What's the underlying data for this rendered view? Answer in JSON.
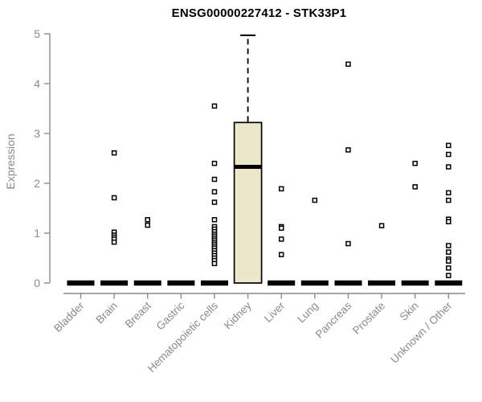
{
  "chart": {
    "title": "ENSG00000227412 - STK33P1",
    "ylabel": "Expression"
  },
  "chart_data": {
    "type": "boxplot",
    "title": "ENSG00000227412 - STK33P1",
    "xlabel": "",
    "ylabel": "Expression",
    "ylim": [
      0,
      5
    ],
    "yticks": [
      0,
      1,
      2,
      3,
      4,
      5
    ],
    "grid": false,
    "legend": false,
    "categories": [
      "Bladder",
      "Brain",
      "Breast",
      "Gastric",
      "Hematopoietic cells",
      "Kidney",
      "Liver",
      "Lung",
      "Pancreas",
      "Prostate",
      "Skin",
      "Unknown / Other"
    ],
    "groups": [
      {
        "name": "Bladder",
        "box": {
          "q1": 0,
          "median": 0,
          "q3": 0,
          "whisker_low": 0,
          "whisker_high": 0
        },
        "points": []
      },
      {
        "name": "Brain",
        "box": {
          "q1": 0,
          "median": 0,
          "q3": 0,
          "whisker_low": 0,
          "whisker_high": 0
        },
        "points": [
          2.61,
          1.71,
          1.02,
          0.96,
          0.92,
          0.88,
          0.82
        ]
      },
      {
        "name": "Breast",
        "box": {
          "q1": 0,
          "median": 0,
          "q3": 0,
          "whisker_low": 0,
          "whisker_high": 0
        },
        "points": [
          1.27,
          1.16
        ]
      },
      {
        "name": "Gastric",
        "box": {
          "q1": 0,
          "median": 0,
          "q3": 0,
          "whisker_low": 0,
          "whisker_high": 0
        },
        "points": []
      },
      {
        "name": "Hematopoietic cells",
        "box": {
          "q1": 0,
          "median": 0,
          "q3": 0,
          "whisker_low": 0,
          "whisker_high": 0
        },
        "points": [
          3.55,
          2.4,
          2.08,
          1.83,
          1.62,
          1.27,
          1.13,
          1.08,
          1.03,
          0.98,
          0.94,
          0.9,
          0.86,
          0.82,
          0.78,
          0.74,
          0.7,
          0.65,
          0.6,
          0.55,
          0.5,
          0.45,
          0.39
        ]
      },
      {
        "name": "Kidney",
        "box": {
          "q1": 0,
          "median": 2.33,
          "q3": 3.22,
          "whisker_low": 0,
          "whisker_high": 4.97
        },
        "points": []
      },
      {
        "name": "Liver",
        "box": {
          "q1": 0,
          "median": 0,
          "q3": 0,
          "whisker_low": 0,
          "whisker_high": 0
        },
        "points": [
          1.89,
          1.13,
          1.1,
          0.88,
          0.57
        ]
      },
      {
        "name": "Lung",
        "box": {
          "q1": 0,
          "median": 0,
          "q3": 0,
          "whisker_low": 0,
          "whisker_high": 0
        },
        "points": [
          1.66
        ]
      },
      {
        "name": "Pancreas",
        "box": {
          "q1": 0,
          "median": 0,
          "q3": 0,
          "whisker_low": 0,
          "whisker_high": 0
        },
        "points": [
          4.39,
          2.67,
          0.79
        ]
      },
      {
        "name": "Prostate",
        "box": {
          "q1": 0,
          "median": 0,
          "q3": 0,
          "whisker_low": 0,
          "whisker_high": 0
        },
        "points": [
          1.15
        ]
      },
      {
        "name": "Skin",
        "box": {
          "q1": 0,
          "median": 0,
          "q3": 0,
          "whisker_low": 0,
          "whisker_high": 0
        },
        "points": [
          2.4,
          1.93
        ]
      },
      {
        "name": "Unknown / Other",
        "box": {
          "q1": 0,
          "median": 0,
          "q3": 0,
          "whisker_low": 0,
          "whisker_high": 0
        },
        "points": [
          2.76,
          2.58,
          2.33,
          1.81,
          1.66,
          1.28,
          1.23,
          0.75,
          0.62,
          0.48,
          0.44,
          0.3,
          0.15
        ]
      }
    ],
    "colors": {
      "box_fill": "#ece7ca",
      "box_border": "#000000",
      "median": "#000000",
      "point": "#000000",
      "axis": "#8a8a8a",
      "title": "#000000",
      "background": "#ffffff"
    }
  }
}
